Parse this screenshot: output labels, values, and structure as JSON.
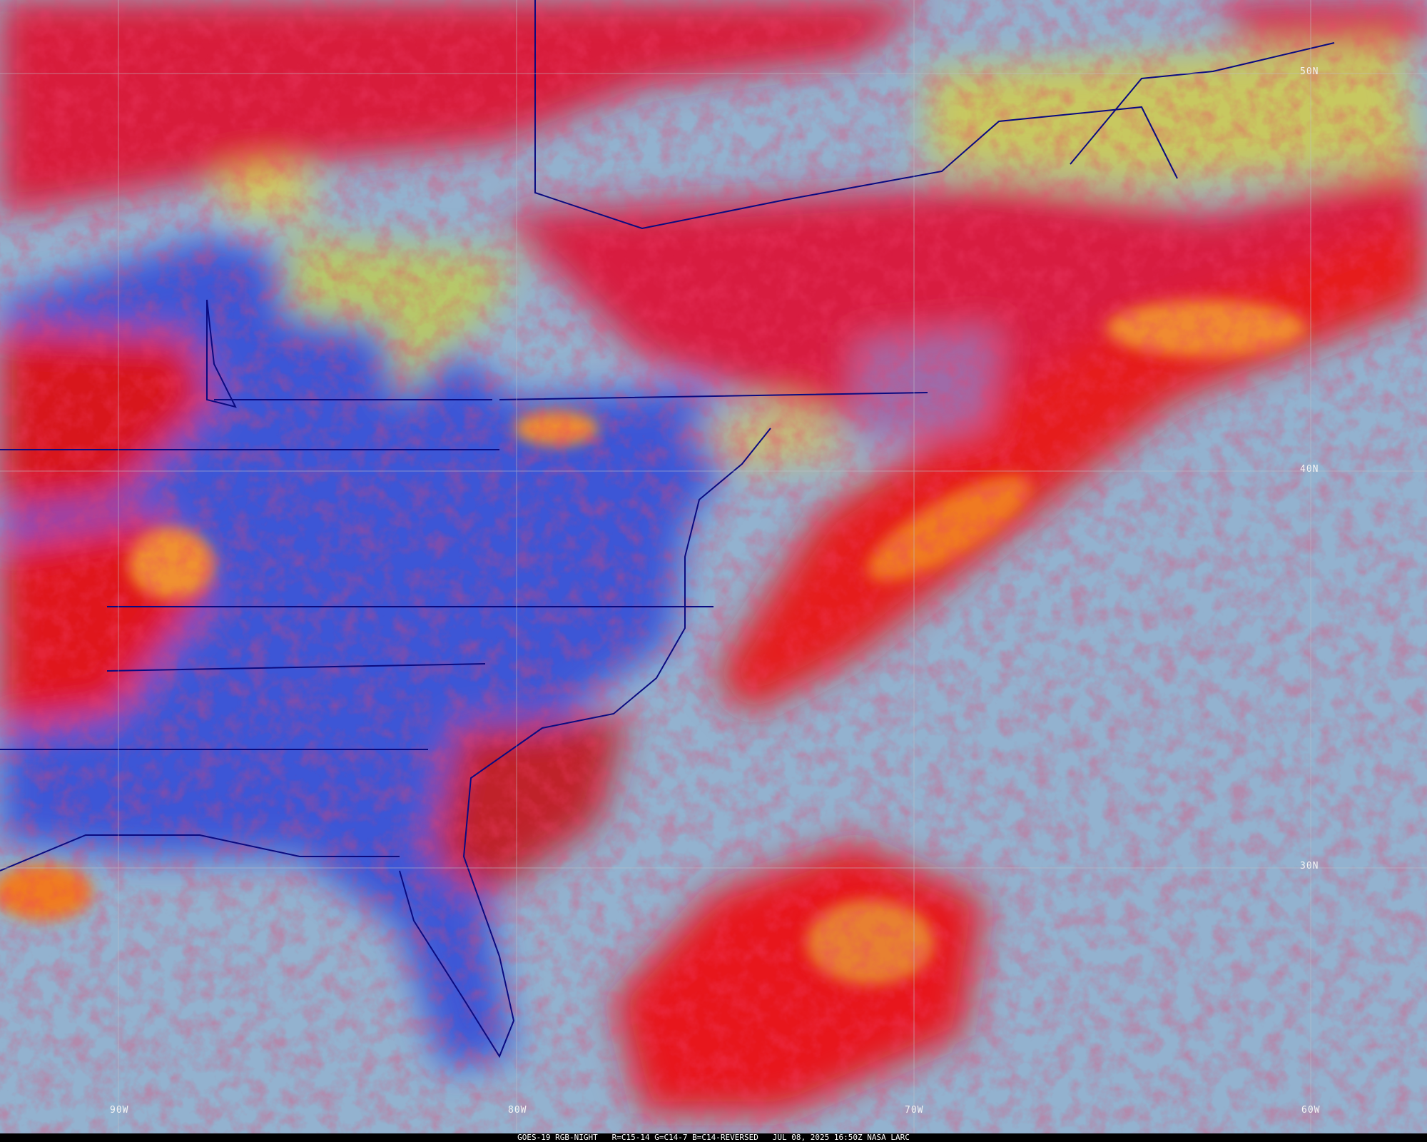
{
  "image": {
    "caption": {
      "satellite": "GOES-19",
      "product": "RGB-NIGHT",
      "channels": "R=C15-14 G=C14-7 B=C14-REVERSED",
      "datetime": "JUL 08, 2025 16:50Z",
      "source": "NASA LARC"
    },
    "latitude_labels": [
      "50N",
      "40N",
      "30N"
    ],
    "longitude_labels": [
      "90W",
      "80W",
      "70W",
      "60W"
    ],
    "colors": {
      "high_cloud_red": "#e0102a",
      "convective_orange": "#f07a20",
      "land_blue": "#3a55d8",
      "ocean_cyan": "#8fb0cf",
      "water_yellow": "#c8c860",
      "border_navy": "#0a0a80"
    }
  }
}
